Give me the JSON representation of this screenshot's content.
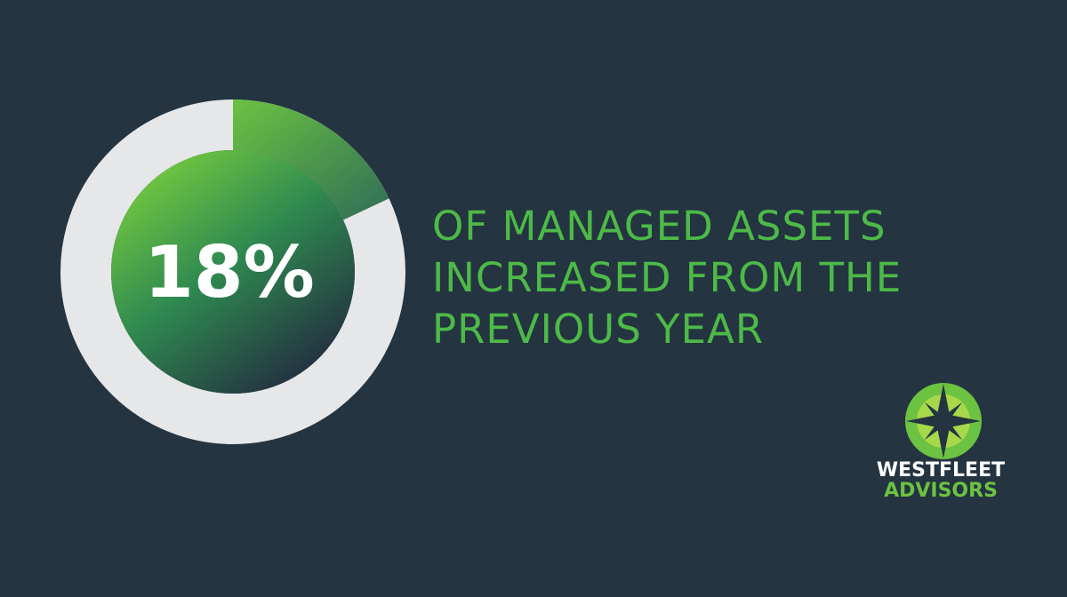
{
  "chart_data": {
    "type": "donut",
    "values": [
      18
    ],
    "value_labels": [
      "18%"
    ],
    "color": "#6cc241",
    "track_color": "#e6e7e8",
    "annotation": [
      "OF MANAGED ASSETS",
      "INCREASED FROM THE",
      "PREVIOUS YEAR"
    ]
  },
  "logo": {
    "line1": "WESTFLEET",
    "line2": "ADVISORS"
  }
}
